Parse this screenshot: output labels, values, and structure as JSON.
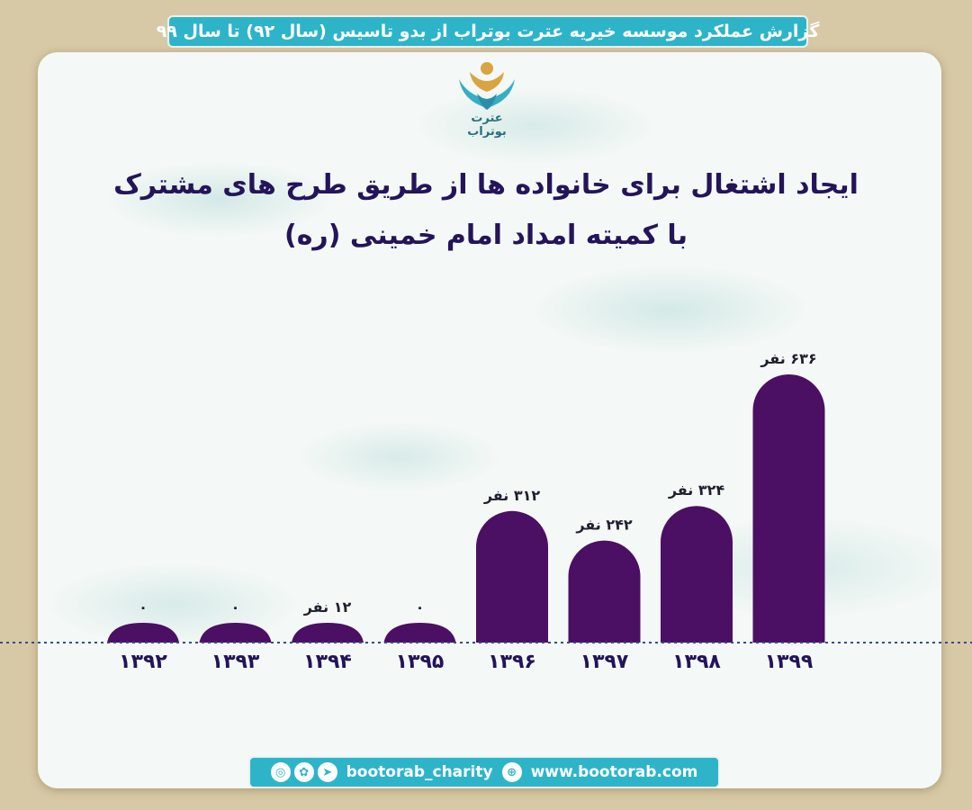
{
  "header": {
    "banner": "گزارش عملکرد موسسه خیریه عترت بوتراب از بدو تاسیس (سال ۹۲) تا سال ۹۹"
  },
  "logo": {
    "text": "عترت بوتراب"
  },
  "colors": {
    "bar": "#4b0f63",
    "banner": "#2eb4c8",
    "title": "#24145a",
    "baseline": "#334e8a"
  },
  "chart_data": {
    "type": "bar",
    "title_line1": "ایجاد اشتغال برای خانواده ها از طریق طرح های مشترک",
    "title_line2": "با کمیته امداد امام خمینی (ره)",
    "categories": [
      "۱۳۹۲",
      "۱۳۹۳",
      "۱۳۹۴",
      "۱۳۹۵",
      "۱۳۹۶",
      "۱۳۹۷",
      "۱۳۹۸",
      "۱۳۹۹"
    ],
    "values": [
      0,
      0,
      12,
      0,
      312,
      242,
      324,
      636
    ],
    "labels": [
      "۰",
      "۰",
      "۱۲ نفر",
      "۰",
      "۳۱۲ نفر",
      "۲۴۲ نفر",
      "۳۲۴ نفر",
      "۶۳۶ نفر"
    ],
    "xlabel": "",
    "ylabel": "",
    "grid": false
  },
  "footer": {
    "social_icons": [
      "instagram-icon",
      "aparat-icon",
      "telegram-icon"
    ],
    "handle": "bootorab_charity",
    "web_icon": "globe-icon",
    "website": "www.bootorab.com"
  }
}
